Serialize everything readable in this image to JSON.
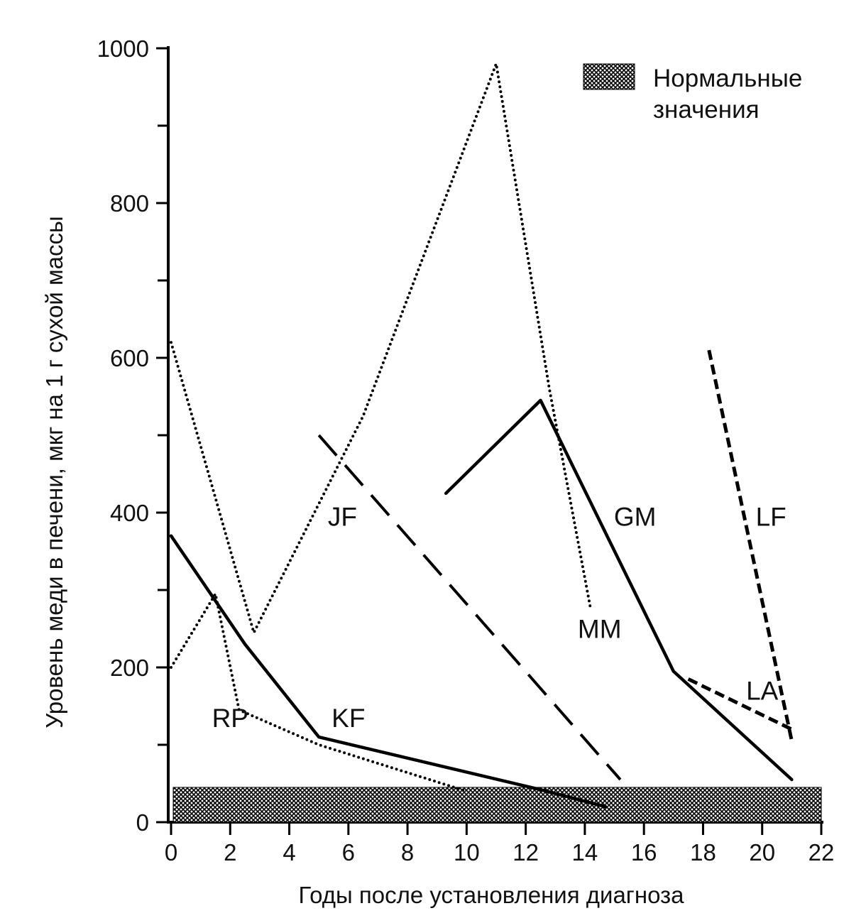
{
  "chart_data": {
    "type": "line",
    "xlabel": "Годы после установления диагноза",
    "ylabel": "Уровень меди в печени, мкг на 1 г сухой массы",
    "xlim": [
      0,
      22
    ],
    "ylim": [
      0,
      1000
    ],
    "x_ticks": [
      0,
      2,
      4,
      6,
      8,
      10,
      12,
      14,
      16,
      18,
      20,
      22
    ],
    "y_ticks": [
      0,
      200,
      400,
      600,
      800,
      1000
    ],
    "y_minor_ticks": [
      100,
      300,
      500,
      700,
      900
    ],
    "grid": false,
    "legend": {
      "position": "top-right",
      "items": [
        {
          "label": "Нормальные значения",
          "lines": [
            "Нормальные",
            "значения"
          ],
          "pattern": "crosshatch"
        }
      ]
    },
    "normal_range": {
      "label": "Нормальные значения",
      "y": [
        0,
        45
      ],
      "x": [
        0,
        22
      ]
    },
    "series": [
      {
        "name": "KF",
        "style": "solid",
        "points": [
          [
            0,
            370
          ],
          [
            2.5,
            230
          ],
          [
            5,
            110
          ],
          [
            12.5,
            42
          ],
          [
            14.7,
            20
          ]
        ],
        "label_at": [
          6,
          135
        ]
      },
      {
        "name": "RP",
        "style": "dotted",
        "points": [
          [
            0,
            200
          ],
          [
            1.5,
            295
          ],
          [
            2.3,
            145
          ],
          [
            5,
            100
          ],
          [
            10,
            40
          ]
        ],
        "label_at": [
          2,
          135
        ]
      },
      {
        "name": "MM",
        "style": "dotted",
        "points": [
          [
            0,
            620
          ],
          [
            2.8,
            245
          ],
          [
            6.5,
            525
          ],
          [
            11,
            980
          ],
          [
            12.8,
            560
          ],
          [
            14.2,
            275
          ]
        ],
        "label_at": [
          14.5,
          250
        ]
      },
      {
        "name": "JF",
        "style": "long-dash",
        "points": [
          [
            5,
            500
          ],
          [
            15.2,
            55
          ]
        ],
        "label_at": [
          5.8,
          395
        ]
      },
      {
        "name": "GM",
        "style": "solid",
        "points": [
          [
            9.3,
            425
          ],
          [
            12.5,
            545
          ],
          [
            17,
            195
          ],
          [
            21,
            55
          ]
        ],
        "label_at": [
          15.7,
          395
        ]
      },
      {
        "name": "LF",
        "style": "dashed",
        "points": [
          [
            18.2,
            610
          ],
          [
            21,
            105
          ]
        ],
        "label_at": [
          20.3,
          395
        ]
      },
      {
        "name": "LA",
        "style": "dashed",
        "points": [
          [
            17.5,
            185
          ],
          [
            21,
            120
          ]
        ],
        "label_at": [
          20,
          170
        ]
      }
    ]
  }
}
